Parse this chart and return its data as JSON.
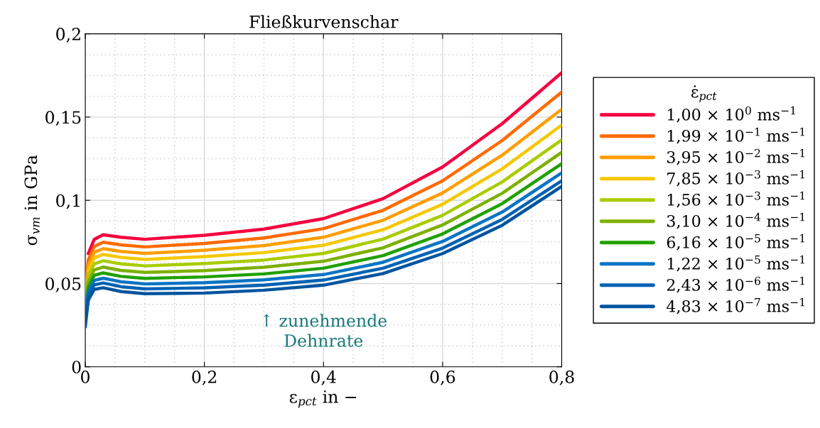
{
  "chart_data": {
    "type": "line",
    "title": "Fließkurvenschar",
    "xlabel": "ε$_{pct}$ in −",
    "ylabel": "σ$_{vm}$ in GPa",
    "legend_title": "ε̇$_{pct}$",
    "annotations": [
      "↑ zunehmende\nDehnrate"
    ],
    "x": [
      0,
      0.005,
      0.015,
      0.03,
      0.06,
      0.1,
      0.2,
      0.3,
      0.4,
      0.5,
      0.6,
      0.7,
      0.8
    ],
    "xlim": [
      0,
      0.8
    ],
    "xticks": [
      0,
      {
        "value": 0.2,
        "label": "0,2"
      },
      {
        "value": 0.4,
        "label": "0,4"
      },
      {
        "value": 0.6,
        "label": "0,6"
      },
      {
        "value": 0.8,
        "label": "0,8"
      }
    ],
    "ylim": [
      0,
      0.2
    ],
    "yticks": [
      0,
      {
        "value": 0.05,
        "label": "0,05"
      },
      {
        "value": 0.1,
        "label": "0,1"
      },
      {
        "value": 0.15,
        "label": "0,15"
      },
      {
        "value": 0.2,
        "label": "0,2"
      }
    ],
    "grid": true,
    "legend": "right",
    "line_style": "solid",
    "marker": "none",
    "series": [
      {
        "name": "1,00 × 10$^{0}$ ms$^{−1}$",
        "color": "#f5003f",
        "values": [
          null,
          0.068,
          0.0765,
          0.0793,
          0.0778,
          0.0766,
          0.079,
          0.0827,
          0.089,
          0.101,
          0.12,
          0.146,
          0.1766
        ]
      },
      {
        "name": "1,99 × 10$^{−1}$ ms$^{−1}$",
        "color": "#ff6a00",
        "values": [
          0.0452,
          0.0641,
          0.0723,
          0.0748,
          0.0732,
          0.072,
          0.0741,
          0.0774,
          0.083,
          0.094,
          0.1117,
          0.1359,
          0.165
        ]
      },
      {
        "name": "3,95 × 10$^{−2}$ ms$^{−1}$",
        "color": "#ff9e00",
        "values": [
          0.0422,
          0.0607,
          0.0687,
          0.071,
          0.0693,
          0.0681,
          0.07,
          0.0728,
          0.0778,
          0.088,
          0.1044,
          0.1271,
          0.1547
        ]
      },
      {
        "name": "7,85 × 10$^{−3}$ ms$^{−1}$",
        "color": "#f5c800",
        "values": [
          null,
          0.0576,
          0.0654,
          0.0675,
          0.0657,
          0.0645,
          0.0662,
          0.0686,
          0.073,
          0.0823,
          0.0976,
          0.1189,
          0.1452
        ]
      },
      {
        "name": "1,56 × 10$^{−3}$ ms$^{−1}$",
        "color": "#a8cc00",
        "values": [
          0.0365,
          0.0543,
          0.0618,
          0.0637,
          0.0618,
          0.0606,
          0.062,
          0.0641,
          0.0681,
          0.0767,
          0.091,
          0.111,
          0.1363
        ]
      },
      {
        "name": "3,10 × 10$^{−4}$ ms$^{−1}$",
        "color": "#7db000",
        "values": [
          0.0336,
          0.0509,
          0.0582,
          0.0599,
          0.0579,
          0.0567,
          0.0578,
          0.0598,
          0.0634,
          0.0715,
          0.0852,
          0.1042,
          0.1288
        ]
      },
      {
        "name": "6,16 × 10$^{−5}$ ms$^{−1}$",
        "color": "#21a000",
        "values": [
          0.0309,
          0.0478,
          0.0549,
          0.0564,
          0.0543,
          0.0531,
          0.054,
          0.0558,
          0.0592,
          0.0668,
          0.0798,
          0.098,
          0.122
        ]
      },
      {
        "name": "1,22 × 10$^{−5}$ ms$^{−1}$",
        "color": "#0a74c4",
        "values": [
          0.0284,
          0.045,
          0.0519,
          0.0532,
          0.0511,
          0.0498,
          0.0505,
          0.0522,
          0.0554,
          0.0628,
          0.0753,
          0.0929,
          0.1165
        ]
      },
      {
        "name": "2,43 × 10$^{−6}$ ms$^{−1}$",
        "color": "#0062b4",
        "values": [
          0.0262,
          0.0425,
          0.0492,
          0.0504,
          0.0481,
          0.0468,
          0.0474,
          0.049,
          0.0521,
          0.0592,
          0.0713,
          0.0885,
          0.1117
        ]
      },
      {
        "name": "4,83 × 10$^{−7}$ ms$^{−1}$",
        "color": "#00549f",
        "values": [
          0.024,
          0.04,
          0.0465,
          0.0475,
          0.0452,
          0.0439,
          0.0443,
          0.046,
          0.049,
          0.056,
          0.068,
          0.085,
          0.1083
        ]
      }
    ]
  }
}
